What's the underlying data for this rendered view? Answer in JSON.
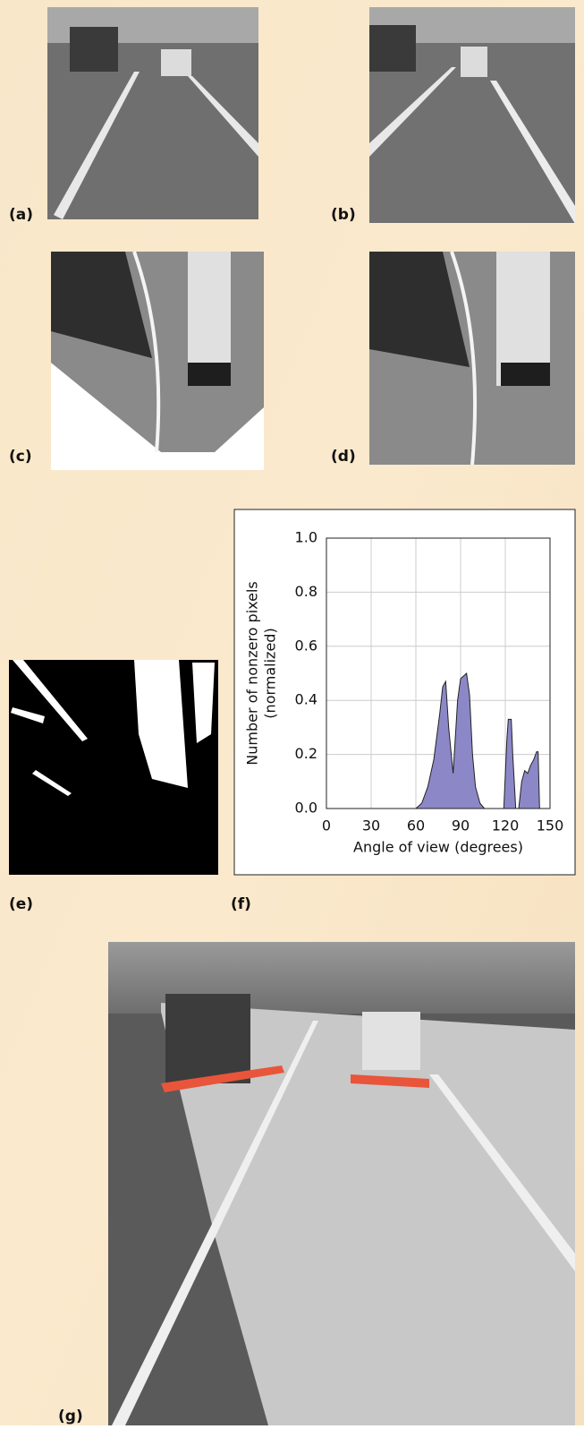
{
  "panels": [
    "(a)",
    "(b)",
    "(c)",
    "(d)",
    "(e)",
    "(f)",
    "(g)"
  ],
  "chart_data": {
    "type": "area",
    "xlabel": "Angle of view (degrees)",
    "ylabel": [
      "Number of nonzero pixels",
      "(normalized)"
    ],
    "x": [
      60,
      64,
      68,
      72,
      76,
      78,
      80,
      82,
      85,
      88,
      90,
      92,
      94,
      96,
      98,
      100,
      103,
      106,
      110,
      119,
      121,
      122,
      124,
      125,
      127,
      128,
      129,
      131,
      133,
      135,
      137,
      139,
      141,
      142,
      143
    ],
    "values": [
      0,
      0.02,
      0.08,
      0.18,
      0.35,
      0.45,
      0.47,
      0.3,
      0.13,
      0.4,
      0.48,
      0.49,
      0.5,
      0.42,
      0.2,
      0.08,
      0.02,
      0,
      null,
      0,
      0.25,
      0.33,
      0.33,
      0.2,
      0,
      null,
      0,
      0.1,
      0.14,
      0.13,
      0.16,
      0.18,
      0.21,
      0.21,
      0
    ],
    "color": "#8c88c8",
    "xlim": [
      0,
      150
    ],
    "xticks": [
      0,
      30,
      60,
      90,
      120,
      150
    ],
    "ylim": [
      0,
      1
    ],
    "yticks": [
      {
        "value": 0,
        "label": "0.0"
      },
      0.2,
      0.4,
      0.6,
      0.8,
      {
        "value": 1,
        "label": "1.0"
      }
    ],
    "grid": true
  }
}
